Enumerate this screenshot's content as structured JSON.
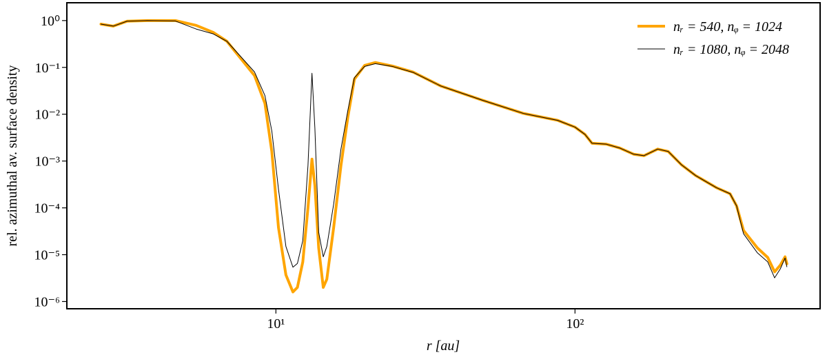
{
  "chart_data": {
    "type": "line",
    "xlabel": "r [au]",
    "ylabel": "rel. azimuthal av. surface density",
    "xlog": true,
    "ylog": true,
    "xlim": [
      2,
      660
    ],
    "ylim": [
      7e-07,
      2.4
    ],
    "xticks": [
      {
        "value": 10,
        "label": "10¹"
      },
      {
        "value": 100,
        "label": "10²"
      }
    ],
    "yticks": [
      {
        "value": 1,
        "label": "10⁰"
      },
      {
        "value": 0.1,
        "label": "10⁻¹"
      },
      {
        "value": 0.01,
        "label": "10⁻²"
      },
      {
        "value": 0.001,
        "label": "10⁻³"
      },
      {
        "value": 0.0001,
        "label": "10⁻⁴"
      },
      {
        "value": 1e-05,
        "label": "10⁻⁵"
      },
      {
        "value": 1e-06,
        "label": "10⁻⁶"
      }
    ],
    "legend": "upper right",
    "x": [
      2.6,
      2.86,
      3.18,
      3.72,
      4.61,
      5.41,
      6.17,
      6.86,
      7.63,
      8.48,
      9.19,
      9.69,
      10.2,
      10.8,
      11.4,
      11.8,
      12.3,
      12.8,
      13.2,
      13.5,
      13.9,
      14.4,
      14.8,
      15.6,
      16.5,
      17.4,
      18.3,
      19.8,
      21.5,
      24.5,
      28.8,
      35.6,
      48.9,
      67.2,
      87.5,
      100,
      108,
      114,
      127,
      141,
      157,
      170,
      189,
      205,
      227,
      253,
      297,
      330,
      347,
      366,
      407,
      441,
      465,
      486,
      504,
      511
    ],
    "series": [
      {
        "name": "nᵣ = 540, nᵩ = 1024",
        "color": "#ffa500",
        "width": 4,
        "values": [
          0.84,
          0.76,
          0.97,
          1.0,
          1.0,
          0.79,
          0.56,
          0.36,
          0.155,
          0.067,
          0.017,
          0.0016,
          3.8e-05,
          3.7e-06,
          1.6e-06,
          2e-06,
          7e-06,
          0.0001,
          0.0011,
          0.0003,
          1.4e-05,
          2e-06,
          3e-06,
          3.8e-05,
          0.0008,
          0.0087,
          0.056,
          0.11,
          0.127,
          0.107,
          0.079,
          0.04,
          0.02,
          0.0104,
          0.0074,
          0.0053,
          0.0037,
          0.0024,
          0.0023,
          0.0019,
          0.0014,
          0.0013,
          0.0018,
          0.0016,
          0.00083,
          0.00049,
          0.00027,
          0.0002,
          0.00011,
          3.3e-05,
          1.4e-05,
          8.7e-06,
          4.3e-06,
          6e-06,
          9e-06,
          6.4e-06
        ]
      },
      {
        "name": "nᵣ = 1080, nᵩ = 2048",
        "color": "#000000",
        "width": 1,
        "values": [
          0.84,
          0.76,
          0.97,
          1.0,
          0.98,
          0.66,
          0.52,
          0.36,
          0.17,
          0.08,
          0.025,
          0.0044,
          0.00025,
          1.5e-05,
          5.4e-06,
          6.5e-06,
          2e-05,
          0.0008,
          0.075,
          0.005,
          3e-05,
          9e-06,
          1.5e-05,
          0.00012,
          0.0018,
          0.012,
          0.06,
          0.105,
          0.12,
          0.105,
          0.078,
          0.04,
          0.02,
          0.0104,
          0.0074,
          0.0053,
          0.0037,
          0.0024,
          0.0023,
          0.0019,
          0.0014,
          0.0013,
          0.0018,
          0.0016,
          0.00083,
          0.00049,
          0.00027,
          0.0002,
          0.00011,
          2.8e-05,
          1.1e-05,
          7e-06,
          3.2e-06,
          5e-06,
          8.5e-06,
          5.5e-06
        ]
      }
    ]
  }
}
